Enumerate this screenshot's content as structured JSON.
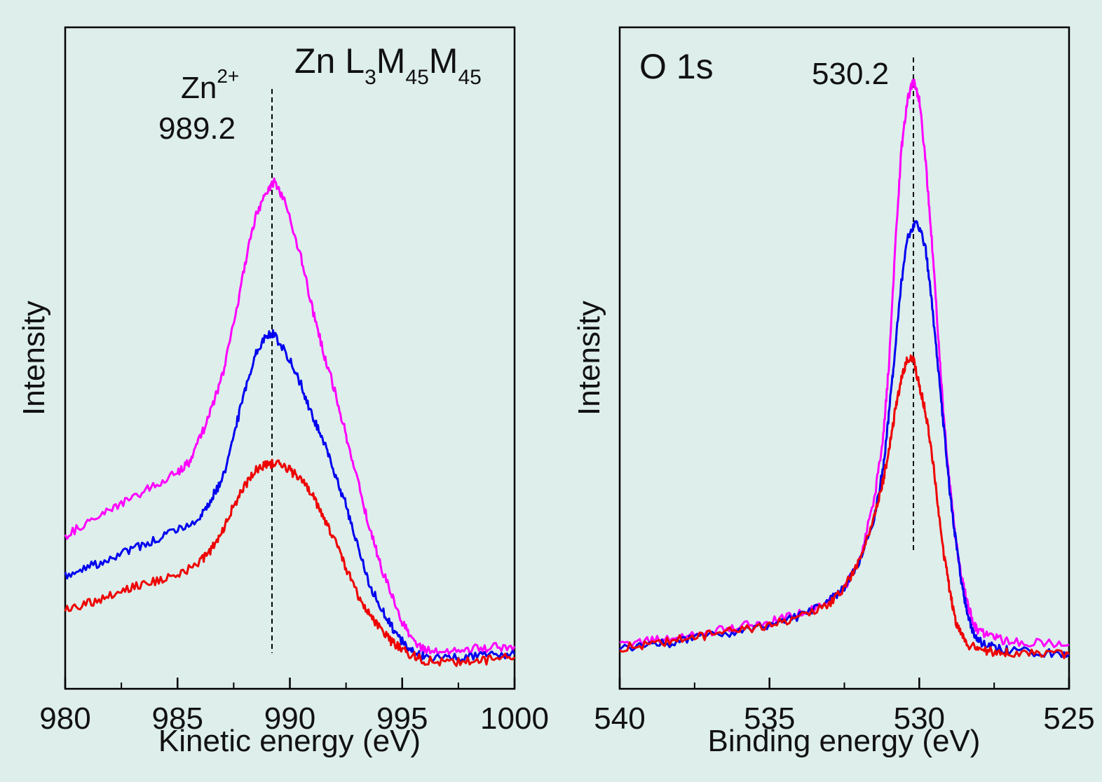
{
  "chart_data": [
    {
      "type": "line",
      "title": "Zn L3M45M45",
      "title_parts": {
        "base": "Zn L",
        "s1": "3",
        "m1": "M",
        "s2": "45",
        "m2": "M",
        "s3": "45"
      },
      "xlabel": "Kinetic energy (eV)",
      "ylabel": "Intensity",
      "xlim": [
        980,
        1000
      ],
      "ylim": [
        0,
        1
      ],
      "x_reversed": false,
      "xticks": [
        980,
        985,
        990,
        995,
        1000
      ],
      "xtick_labels": [
        "980",
        "985",
        "990",
        "995",
        "1000"
      ],
      "minor_xticks": [
        982.5,
        987.5,
        992.5,
        997.5
      ],
      "reference_line": {
        "x": 989.2,
        "label": "989.2",
        "species_label": "Zn",
        "species_sup": "2+"
      },
      "series": [
        {
          "color": "#ff00ff",
          "points": [
            [
              980,
              0.242
            ],
            [
              981,
              0.262
            ],
            [
              982,
              0.283
            ],
            [
              983,
              0.302
            ],
            [
              984,
              0.322
            ],
            [
              985,
              0.342
            ],
            [
              985.5,
              0.358
            ],
            [
              986,
              0.395
            ],
            [
              986.5,
              0.44
            ],
            [
              987,
              0.495
            ],
            [
              987.5,
              0.575
            ],
            [
              988,
              0.67
            ],
            [
              988.5,
              0.75
            ],
            [
              989,
              0.785
            ],
            [
              989.3,
              0.8
            ],
            [
              989.8,
              0.77
            ],
            [
              990.5,
              0.68
            ],
            [
              991,
              0.6
            ],
            [
              991.5,
              0.53
            ],
            [
              992,
              0.47
            ],
            [
              992.5,
              0.4
            ],
            [
              993,
              0.33
            ],
            [
              993.5,
              0.26
            ],
            [
              994,
              0.2
            ],
            [
              994.5,
              0.15
            ],
            [
              995,
              0.105
            ],
            [
              995.5,
              0.075
            ],
            [
              996,
              0.06
            ],
            [
              997,
              0.06
            ],
            [
              998,
              0.063
            ],
            [
              999,
              0.065
            ],
            [
              1000,
              0.067
            ]
          ]
        },
        {
          "color": "#0000ee",
          "points": [
            [
              980,
              0.178
            ],
            [
              981,
              0.192
            ],
            [
              982,
              0.205
            ],
            [
              983,
              0.22
            ],
            [
              984,
              0.235
            ],
            [
              985,
              0.25
            ],
            [
              986,
              0.27
            ],
            [
              986.5,
              0.3
            ],
            [
              987,
              0.33
            ],
            [
              987.5,
              0.4
            ],
            [
              988,
              0.47
            ],
            [
              988.5,
              0.53
            ],
            [
              989,
              0.56
            ],
            [
              989.3,
              0.56
            ],
            [
              990,
              0.52
            ],
            [
              990.5,
              0.48
            ],
            [
              991,
              0.43
            ],
            [
              991.5,
              0.39
            ],
            [
              992,
              0.34
            ],
            [
              992.5,
              0.29
            ],
            [
              993,
              0.23
            ],
            [
              993.5,
              0.17
            ],
            [
              994,
              0.13
            ],
            [
              994.5,
              0.1
            ],
            [
              995,
              0.075
            ],
            [
              995.5,
              0.058
            ],
            [
              996,
              0.05
            ],
            [
              997,
              0.048
            ],
            [
              998,
              0.05
            ],
            [
              999,
              0.052
            ],
            [
              1000,
              0.055
            ]
          ]
        },
        {
          "color": "#ee0000",
          "points": [
            [
              980,
              0.125
            ],
            [
              981,
              0.135
            ],
            [
              982,
              0.147
            ],
            [
              983,
              0.16
            ],
            [
              984,
              0.17
            ],
            [
              985,
              0.18
            ],
            [
              986,
              0.2
            ],
            [
              986.5,
              0.22
            ],
            [
              987,
              0.25
            ],
            [
              987.5,
              0.29
            ],
            [
              988,
              0.32
            ],
            [
              988.5,
              0.345
            ],
            [
              989,
              0.355
            ],
            [
              989.5,
              0.355
            ],
            [
              990,
              0.345
            ],
            [
              990.5,
              0.33
            ],
            [
              991,
              0.305
            ],
            [
              991.5,
              0.27
            ],
            [
              992,
              0.235
            ],
            [
              992.5,
              0.19
            ],
            [
              993,
              0.15
            ],
            [
              993.5,
              0.12
            ],
            [
              994,
              0.095
            ],
            [
              994.5,
              0.075
            ],
            [
              995,
              0.062
            ],
            [
              995.5,
              0.052
            ],
            [
              996,
              0.045
            ],
            [
              997,
              0.042
            ],
            [
              998,
              0.043
            ],
            [
              999,
              0.046
            ],
            [
              1000,
              0.05
            ]
          ]
        }
      ]
    },
    {
      "type": "line",
      "title": "O 1s",
      "xlabel": "Binding energy (eV)",
      "ylabel": "Intensity",
      "xlim": [
        540,
        525
      ],
      "ylim": [
        0,
        1
      ],
      "x_reversed": true,
      "xticks": [
        540,
        535,
        530,
        525
      ],
      "xtick_labels": [
        "540",
        "535",
        "530",
        "525"
      ],
      "minor_xticks": [
        537.5,
        532.5,
        527.5
      ],
      "reference_line": {
        "x": 530.2,
        "label": "530.2"
      },
      "series": [
        {
          "color": "#ff00ff",
          "points": [
            [
              540,
              0.07
            ],
            [
              539,
              0.075
            ],
            [
              538,
              0.083
            ],
            [
              537,
              0.09
            ],
            [
              536,
              0.098
            ],
            [
              535,
              0.105
            ],
            [
              534,
              0.12
            ],
            [
              533,
              0.14
            ],
            [
              532.5,
              0.16
            ],
            [
              532,
              0.2
            ],
            [
              531.5,
              0.3
            ],
            [
              531.2,
              0.4
            ],
            [
              531,
              0.52
            ],
            [
              530.8,
              0.7
            ],
            [
              530.6,
              0.85
            ],
            [
              530.4,
              0.93
            ],
            [
              530.2,
              0.96
            ],
            [
              530,
              0.93
            ],
            [
              529.8,
              0.84
            ],
            [
              529.6,
              0.72
            ],
            [
              529.4,
              0.58
            ],
            [
              529.2,
              0.44
            ],
            [
              529,
              0.33
            ],
            [
              528.8,
              0.24
            ],
            [
              528.6,
              0.18
            ],
            [
              528.4,
              0.135
            ],
            [
              528.2,
              0.105
            ],
            [
              528,
              0.09
            ],
            [
              527.5,
              0.08
            ],
            [
              527,
              0.075
            ],
            [
              526,
              0.072
            ],
            [
              525,
              0.07
            ]
          ]
        },
        {
          "color": "#0000ee",
          "points": [
            [
              540,
              0.065
            ],
            [
              539,
              0.068
            ],
            [
              538,
              0.075
            ],
            [
              537,
              0.083
            ],
            [
              536,
              0.09
            ],
            [
              535,
              0.1
            ],
            [
              534,
              0.115
            ],
            [
              533,
              0.14
            ],
            [
              532.5,
              0.16
            ],
            [
              532,
              0.2
            ],
            [
              531.5,
              0.27
            ],
            [
              531.2,
              0.35
            ],
            [
              531,
              0.44
            ],
            [
              530.8,
              0.54
            ],
            [
              530.6,
              0.64
            ],
            [
              530.4,
              0.71
            ],
            [
              530.1,
              0.74
            ],
            [
              529.8,
              0.7
            ],
            [
              529.6,
              0.62
            ],
            [
              529.4,
              0.52
            ],
            [
              529.2,
              0.42
            ],
            [
              529,
              0.32
            ],
            [
              528.8,
              0.24
            ],
            [
              528.6,
              0.17
            ],
            [
              528.4,
              0.12
            ],
            [
              528.2,
              0.09
            ],
            [
              528,
              0.075
            ],
            [
              527.5,
              0.065
            ],
            [
              527,
              0.06
            ],
            [
              526,
              0.057
            ],
            [
              525,
              0.055
            ]
          ]
        },
        {
          "color": "#ee0000",
          "points": [
            [
              540,
              0.065
            ],
            [
              539,
              0.07
            ],
            [
              538,
              0.078
            ],
            [
              537,
              0.085
            ],
            [
              536,
              0.093
            ],
            [
              535,
              0.1
            ],
            [
              534,
              0.112
            ],
            [
              533,
              0.135
            ],
            [
              532.5,
              0.16
            ],
            [
              532,
              0.2
            ],
            [
              531.5,
              0.27
            ],
            [
              531.2,
              0.33
            ],
            [
              531,
              0.38
            ],
            [
              530.8,
              0.44
            ],
            [
              530.6,
              0.49
            ],
            [
              530.4,
              0.52
            ],
            [
              530.2,
              0.52
            ],
            [
              530,
              0.48
            ],
            [
              529.8,
              0.44
            ],
            [
              529.6,
              0.38
            ],
            [
              529.4,
              0.3
            ],
            [
              529.2,
              0.22
            ],
            [
              529,
              0.16
            ],
            [
              528.8,
              0.11
            ],
            [
              528.6,
              0.085
            ],
            [
              528.4,
              0.07
            ],
            [
              528,
              0.062
            ],
            [
              527.5,
              0.058
            ],
            [
              527,
              0.057
            ],
            [
              526,
              0.056
            ],
            [
              525,
              0.055
            ]
          ]
        }
      ]
    }
  ]
}
